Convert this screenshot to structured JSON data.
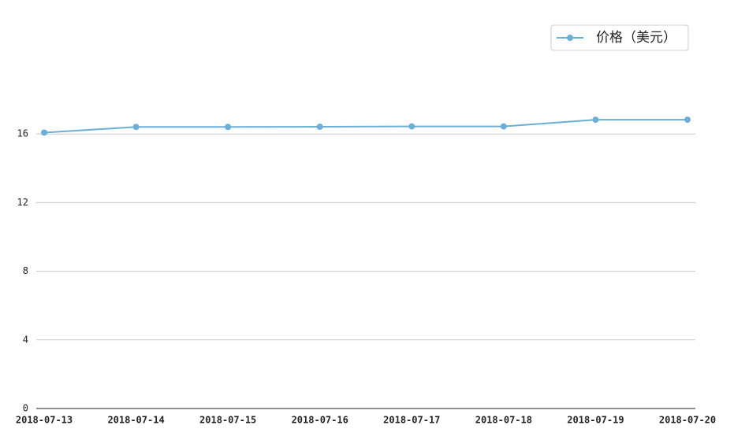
{
  "chart_data": {
    "type": "line",
    "categories": [
      "2018-07-13",
      "2018-07-14",
      "2018-07-15",
      "2018-07-16",
      "2018-07-17",
      "2018-07-18",
      "2018-07-19",
      "2018-07-20"
    ],
    "series": [
      {
        "name": "价格（美元）",
        "color": "#6baed6",
        "values": [
          16.08,
          16.41,
          16.41,
          16.42,
          16.44,
          16.44,
          16.83,
          16.83
        ]
      }
    ],
    "ylim": [
      0,
      20
    ],
    "yticks": [
      0,
      4,
      8,
      12,
      16
    ],
    "grid": true,
    "legend": "upper right"
  }
}
